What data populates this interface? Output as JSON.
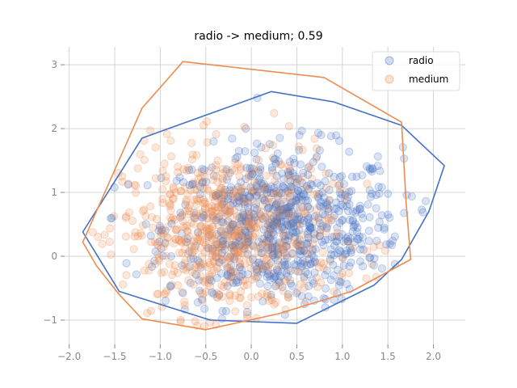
{
  "chart_data": {
    "type": "scatter",
    "title": "radio -> medium; 0.59",
    "xlabel": "",
    "ylabel": "",
    "xlim": [
      -2.05,
      2.35
    ],
    "ylim": [
      -1.38,
      3.28
    ],
    "xticks": [
      -2.0,
      -1.5,
      -1.0,
      -0.5,
      0.0,
      0.5,
      1.0,
      1.5,
      2.0
    ],
    "xtick_labels": [
      "−2.0",
      "−1.5",
      "−1.0",
      "−0.5",
      "0.0",
      "0.5",
      "1.0",
      "1.5",
      "2.0"
    ],
    "yticks": [
      -1,
      0,
      1,
      2,
      3
    ],
    "ytick_labels": [
      "−1",
      "0",
      "1",
      "2",
      "3"
    ],
    "grid": true,
    "legend_position": "top-right",
    "series": [
      {
        "name": "radio",
        "color": "#4472c4",
        "center": [
          0.35,
          0.45
        ],
        "spread": [
          0.65,
          0.62
        ],
        "count": 750,
        "hull": [
          [
            -1.85,
            0.38
          ],
          [
            -1.45,
            -0.55
          ],
          [
            -0.45,
            -1.0
          ],
          [
            0.5,
            -1.05
          ],
          [
            1.35,
            -0.45
          ],
          [
            1.65,
            -0.05
          ],
          [
            1.95,
            0.7
          ],
          [
            2.12,
            1.42
          ],
          [
            1.65,
            2.05
          ],
          [
            0.9,
            2.42
          ],
          [
            0.22,
            2.58
          ],
          [
            -1.2,
            1.85
          ]
        ]
      },
      {
        "name": "medium",
        "color": "#ed8c4f",
        "center": [
          -0.25,
          0.35
        ],
        "spread": [
          0.58,
          0.65
        ],
        "count": 750,
        "hull": [
          [
            -1.85,
            0.22
          ],
          [
            -1.7,
            -0.15
          ],
          [
            -1.45,
            -0.6
          ],
          [
            -1.2,
            -0.98
          ],
          [
            -0.5,
            -1.15
          ],
          [
            0.3,
            -0.9
          ],
          [
            1.1,
            -0.55
          ],
          [
            1.75,
            -0.05
          ],
          [
            1.7,
            0.85
          ],
          [
            1.65,
            2.1
          ],
          [
            0.8,
            2.8
          ],
          [
            -0.75,
            3.05
          ],
          [
            -1.2,
            2.32
          ]
        ]
      }
    ]
  }
}
